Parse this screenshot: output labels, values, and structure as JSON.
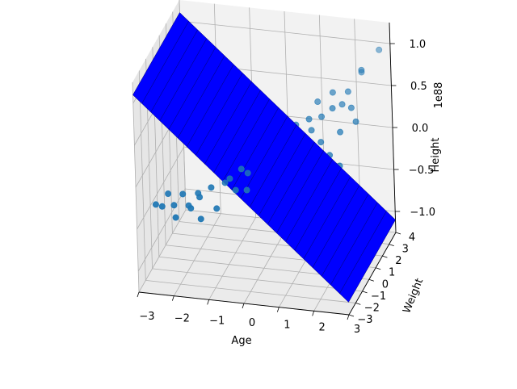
{
  "chart_data": {
    "type": "scatter",
    "projection": "3d",
    "xlabel": "Age",
    "ylabel": "Weight",
    "zlabel": "Height",
    "z_offset_label": "1e88",
    "x_ticks": [
      "−3",
      "−2",
      "−1",
      "0",
      "1",
      "2",
      "3"
    ],
    "y_ticks": [
      "−3",
      "−2",
      "−1",
      "0",
      "1",
      "2",
      "3",
      "4"
    ],
    "z_ticks": [
      "−1.0",
      "−0.5",
      "0.0",
      "0.5",
      "1.0"
    ],
    "grid": true,
    "legend": "none",
    "colors": {
      "scatter": "#1f77b4",
      "surface": "#0000ff",
      "surface_edge": "#00007a",
      "pane": "#f2f2f2",
      "grid": "#b0b0b0"
    },
    "series": [
      {
        "kind": "scatter",
        "points": [
          {
            "x": -2.6,
            "y": -2.2,
            "z": -0.3
          },
          {
            "x": -2.4,
            "y": -2.3,
            "z": -0.3
          },
          {
            "x": -2.3,
            "y": -1.9,
            "z": -0.2
          },
          {
            "x": -2.1,
            "y": -2.1,
            "z": -0.3
          },
          {
            "x": -2.0,
            "y": -2.4,
            "z": -0.4
          },
          {
            "x": -1.9,
            "y": -1.8,
            "z": -0.2
          },
          {
            "x": -1.7,
            "y": -2.0,
            "z": -0.3
          },
          {
            "x": -1.6,
            "y": -2.2,
            "z": -0.3
          },
          {
            "x": -1.4,
            "y": -1.9,
            "z": -0.2
          },
          {
            "x": -1.3,
            "y": -2.3,
            "z": -0.4
          },
          {
            "x": -1.1,
            "y": -1.7,
            "z": -0.1
          },
          {
            "x": -0.9,
            "y": -2.0,
            "z": -0.3
          },
          {
            "x": -0.6,
            "y": -1.5,
            "z": 0.0
          },
          {
            "x": -0.4,
            "y": -1.7,
            "z": -0.1
          },
          {
            "x": -0.3,
            "y": -1.3,
            "z": 0.1
          },
          {
            "x": -0.1,
            "y": -1.6,
            "z": -0.1
          },
          {
            "x": 0.0,
            "y": -1.1,
            "z": 0.1
          },
          {
            "x": 0.2,
            "y": -1.4,
            "z": 0.0
          },
          {
            "x": 0.3,
            "y": -0.9,
            "z": 0.1
          },
          {
            "x": 0.5,
            "y": -1.2,
            "z": 0.0
          },
          {
            "x": 0.7,
            "y": -0.7,
            "z": 0.2
          },
          {
            "x": 0.8,
            "y": -0.2,
            "z": 0.3
          },
          {
            "x": 1.0,
            "y": -0.9,
            "z": 0.1
          },
          {
            "x": 1.1,
            "y": 0.1,
            "z": 0.4
          },
          {
            "x": 1.2,
            "y": -0.5,
            "z": 0.2
          },
          {
            "x": 1.3,
            "y": 0.6,
            "z": 0.5
          },
          {
            "x": 1.4,
            "y": 0.4,
            "z": 0.4
          },
          {
            "x": 1.5,
            "y": -0.3,
            "z": 0.2
          },
          {
            "x": 1.6,
            "y": 0.9,
            "z": 0.5
          },
          {
            "x": 1.7,
            "y": 0.2,
            "z": 0.3
          },
          {
            "x": 1.9,
            "y": 1.0,
            "z": 0.6
          },
          {
            "x": 2.0,
            "y": -0.1,
            "z": 0.2
          },
          {
            "x": 2.1,
            "y": 1.4,
            "z": 0.6
          },
          {
            "x": 2.2,
            "y": 0.5,
            "z": 0.4
          },
          {
            "x": 2.3,
            "y": -0.2,
            "z": 0.1
          },
          {
            "x": 2.4,
            "y": 1.2,
            "z": 0.6
          },
          {
            "x": 2.5,
            "y": 2.3,
            "z": 0.9
          },
          {
            "x": 2.6,
            "y": 0.8,
            "z": 0.5
          },
          {
            "x": 2.2,
            "y": 1.8,
            "z": 0.7
          },
          {
            "x": 1.8,
            "y": 1.6,
            "z": 0.7
          },
          {
            "x": 1.4,
            "y": 1.4,
            "z": 0.6
          },
          {
            "x": 0.9,
            "y": 0.7,
            "z": 0.4
          },
          {
            "x": 0.4,
            "y": 0.2,
            "z": 0.2
          },
          {
            "x": -0.2,
            "y": -0.9,
            "z": 0.0
          },
          {
            "x": -0.8,
            "y": -1.2,
            "z": -0.1
          },
          {
            "x": -1.5,
            "y": -1.6,
            "z": -0.2
          },
          {
            "x": 2.8,
            "y": 3.4,
            "z": 1.0
          },
          {
            "x": 2.4,
            "y": 2.8,
            "z": 0.8
          }
        ]
      },
      {
        "kind": "surface",
        "corners": [
          {
            "x": -3,
            "y": -3,
            "z": 1.1
          },
          {
            "x": -3,
            "y": 4,
            "z": 1.1
          },
          {
            "x": 3,
            "y": 4,
            "z": -1.1
          },
          {
            "x": 3,
            "y": -3,
            "z": -1.1
          }
        ]
      }
    ]
  }
}
